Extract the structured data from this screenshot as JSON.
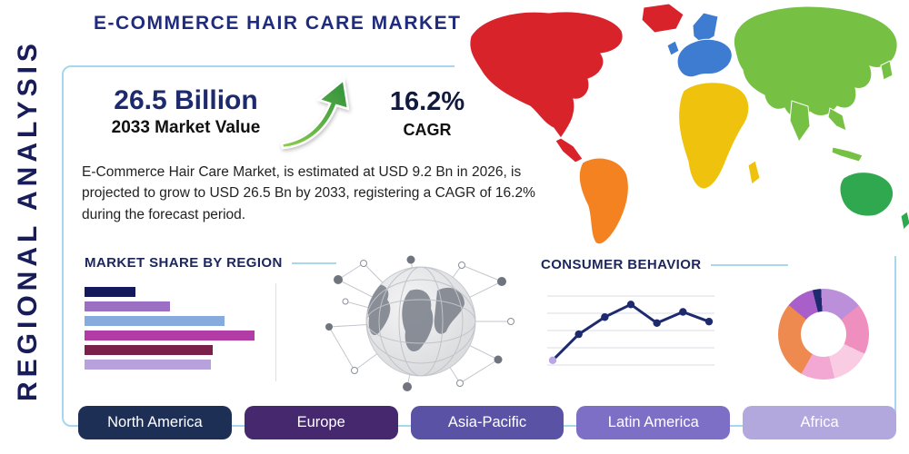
{
  "page": {
    "title": "E-COMMERCE HAIR CARE MARKET",
    "side_label": "REGIONAL ANALYSIS"
  },
  "stats": {
    "value": "26.5 Billion",
    "value_caption": "2033 Market Value",
    "cagr": "16.2%",
    "cagr_caption": "CAGR"
  },
  "description": "E-Commerce Hair Care Market, is estimated at USD 9.2 Bn in 2026, is projected to grow to USD 26.5 Bn by 2033, registering a CAGR of 16.2% during the forecast period.",
  "colors": {
    "accent_navy": "#1d2a6e",
    "panel_border": "#a5d8ec",
    "growth_arrow_green": "#3f9b3f"
  },
  "chart_data": [
    {
      "id": "market_share_bars",
      "type": "bar",
      "orientation": "horizontal",
      "title": "MARKET SHARE BY REGION",
      "values": [
        27,
        45,
        74,
        90,
        68,
        67
      ],
      "value_unit": "relative width, % of chart max",
      "colors": [
        "#14195c",
        "#9b6fc3",
        "#88abdd",
        "#b23ba6",
        "#7b1f4b",
        "#b7a2de"
      ],
      "grid": "off",
      "axis_labels_visible": false
    },
    {
      "id": "consumer_behavior_line",
      "type": "line",
      "title": "CONSUMER BEHAVIOR",
      "values": [
        10,
        45,
        68,
        85,
        60,
        75,
        62
      ],
      "ylim": [
        0,
        100
      ],
      "grid": "horizontal",
      "line_color": "#1d2a6e",
      "marker_color": "#1d2a6e",
      "first_marker_color": "#b9a6e4",
      "axis_labels_visible": false
    },
    {
      "id": "regional_share_donut",
      "type": "pie",
      "subtype": "donut",
      "title": "",
      "segments": [
        {
          "value": 3,
          "color": "#1d2a6e"
        },
        {
          "value": 15,
          "color": "#bb8fd9"
        },
        {
          "value": 18,
          "color": "#ef8fc0"
        },
        {
          "value": 14,
          "color": "#f9cce4"
        },
        {
          "value": 12,
          "color": "#f2a8d3"
        },
        {
          "value": 28,
          "color": "#ee8a50"
        },
        {
          "value": 10,
          "color": "#a95fc9"
        }
      ],
      "legend": "none"
    }
  ],
  "map": {
    "regions": [
      {
        "name": "North America",
        "color": "#d9232b"
      },
      {
        "name": "South America",
        "color": "#f58220"
      },
      {
        "name": "Europe",
        "color": "#3d7cd0"
      },
      {
        "name": "Africa",
        "color": "#efc20e"
      },
      {
        "name": "Asia",
        "color": "#76c043"
      },
      {
        "name": "Oceania",
        "color": "#2fa84f"
      }
    ]
  },
  "region_buttons": [
    {
      "label": "North America",
      "color": "#1e2f56"
    },
    {
      "label": "Europe",
      "color": "#45286e"
    },
    {
      "label": "Asia-Pacific",
      "color": "#5a53a5"
    },
    {
      "label": "Latin America",
      "color": "#7d6fc5"
    },
    {
      "label": "Africa",
      "color": "#b2a8de"
    }
  ]
}
